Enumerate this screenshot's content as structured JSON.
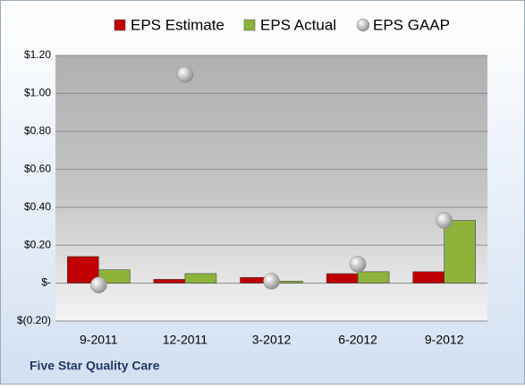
{
  "chart_data": {
    "type": "bar",
    "categories": [
      "9-2011",
      "12-2011",
      "3-2012",
      "6-2012",
      "9-2012"
    ],
    "series": [
      {
        "name": "EPS Estimate",
        "color": "#c00000",
        "values": [
          0.14,
          0.02,
          0.03,
          0.05,
          0.06
        ]
      },
      {
        "name": "EPS Actual",
        "color": "#8db33a",
        "values": [
          0.07,
          0.05,
          0.01,
          0.06,
          0.33
        ]
      },
      {
        "name": "EPS GAAP",
        "color": "#a6a6a6",
        "marker": "circle",
        "values": [
          -0.01,
          1.1,
          0.01,
          0.1,
          0.33
        ]
      }
    ],
    "ylim": [
      -0.2,
      1.2
    ],
    "yticks": [
      {
        "value": -0.2,
        "label": "$(0.20)"
      },
      {
        "value": 0,
        "label": "$-"
      },
      {
        "value": 0.2,
        "label": "$0.20"
      },
      {
        "value": 0.4,
        "label": "$0.40"
      },
      {
        "value": 0.6,
        "label": "$0.60"
      },
      {
        "value": 0.8,
        "label": "$0.80"
      },
      {
        "value": 1.0,
        "label": "$1.00"
      },
      {
        "value": 1.2,
        "label": "$1.20"
      }
    ],
    "grid": true,
    "legend": "top",
    "footer": "Five Star Quality Care"
  }
}
